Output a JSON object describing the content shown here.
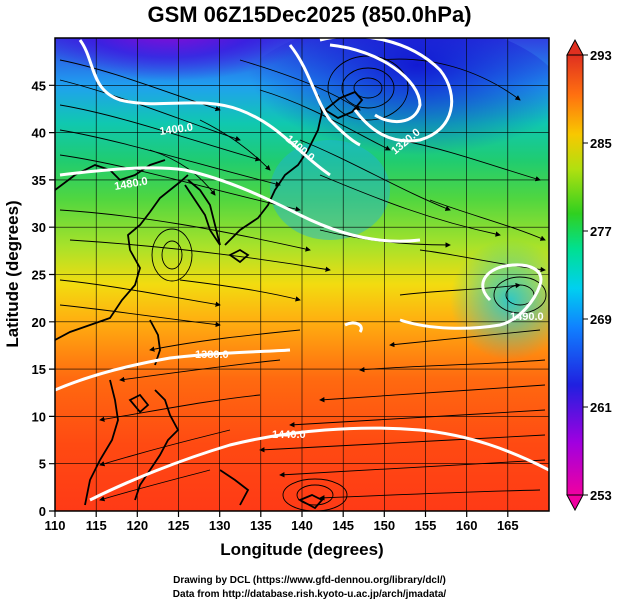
{
  "title": "GSM 06Z15Dec2025 (850.0hPa)",
  "x_axis": {
    "label": "Longitude (degrees)",
    "ticks": [
      "110",
      "115",
      "120",
      "125",
      "130",
      "135",
      "140",
      "145",
      "150",
      "155",
      "160",
      "165"
    ],
    "range": [
      110,
      170
    ]
  },
  "y_axis": {
    "label": "Latitude  (degrees)",
    "ticks": [
      "0",
      "5",
      "10",
      "15",
      "20",
      "25",
      "30",
      "35",
      "40",
      "45"
    ],
    "range": [
      0,
      50
    ]
  },
  "colorbar": {
    "labels": [
      "293",
      "285",
      "277",
      "269",
      "261",
      "253"
    ],
    "range": [
      253,
      293
    ],
    "colors": [
      "#e8007a",
      "#b000d0",
      "#3010e0",
      "#1060ff",
      "#00c0ff",
      "#00e0b0",
      "#40d030",
      "#a0e020",
      "#f0d000",
      "#ff9000",
      "#ff5010",
      "#e83020"
    ]
  },
  "contours": [
    {
      "label": "1440.0"
    },
    {
      "label": "1400.0"
    },
    {
      "label": "1480.0"
    },
    {
      "label": "1320.0"
    },
    {
      "label": "1380.0"
    },
    {
      "label": "1490.0"
    }
  ],
  "credits": {
    "line1": "Drawing by DCL (https://www.gfd-dennou.org/library/dcl/)",
    "line2": "Data from http://database.rish.kyoto-u.ac.jp/arch/jmadata/"
  },
  "chart_data": {
    "type": "heatmap",
    "title": "GSM 06Z15Dec2025 (850.0hPa)",
    "xlabel": "Longitude (degrees)",
    "ylabel": "Latitude  (degrees)",
    "xlim": [
      110,
      170
    ],
    "ylim": [
      0,
      50
    ],
    "colorbar_range": [
      253,
      293
    ],
    "colorbar_ticks": [
      293,
      285,
      277,
      269,
      261,
      253
    ],
    "grid": true
  }
}
